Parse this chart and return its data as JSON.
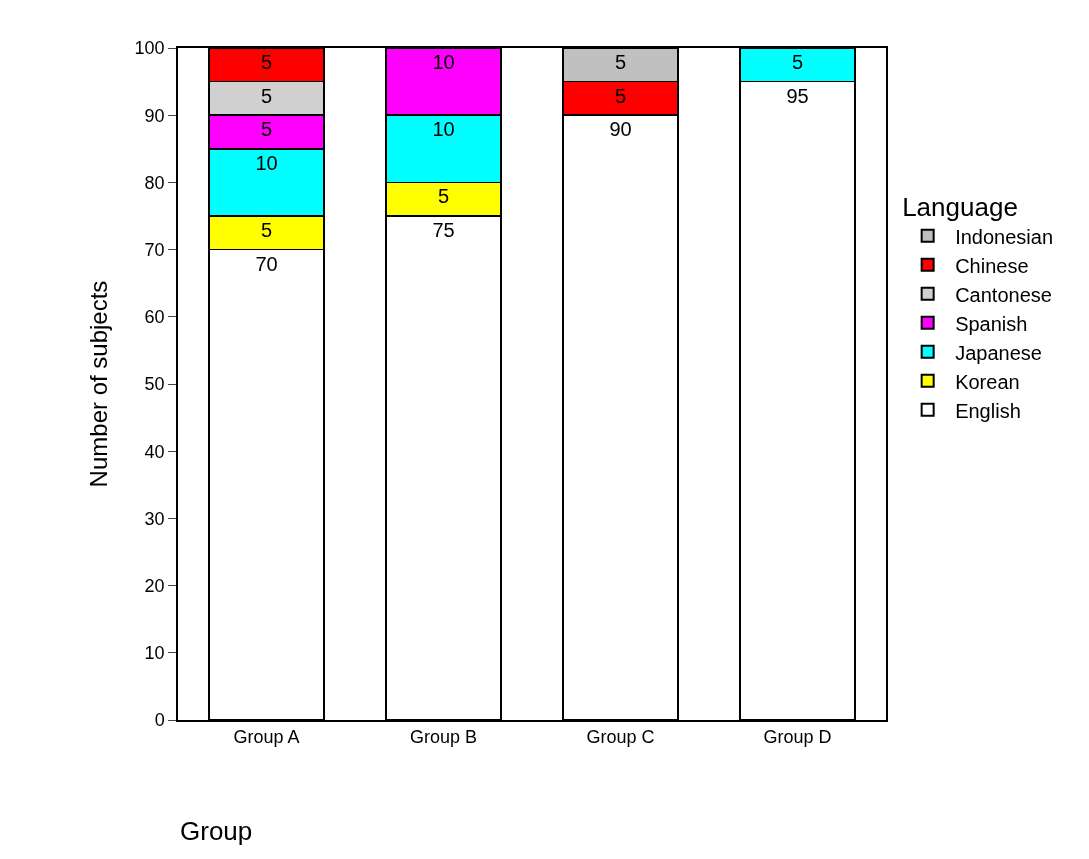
{
  "chart_data": {
    "type": "bar",
    "stacked": true,
    "xlabel": "Group",
    "ylabel": "Number of subjects",
    "legend_title": "Language",
    "legend": "right",
    "grid": false,
    "data_labels": true,
    "categories": [
      "Group A",
      "Group B",
      "Group C",
      "Group D"
    ],
    "ylim": [
      0,
      100
    ],
    "yticks": [
      0,
      10,
      20,
      30,
      40,
      50,
      60,
      70,
      80,
      90,
      100
    ],
    "series": [
      {
        "name": "English",
        "color": "#ffffff",
        "values": [
          70,
          75,
          90,
          95
        ]
      },
      {
        "name": "Korean",
        "color": "#ffff00",
        "values": [
          5,
          5,
          null,
          null
        ]
      },
      {
        "name": "Japanese",
        "color": "#00ffff",
        "values": [
          10,
          10,
          null,
          5
        ]
      },
      {
        "name": "Spanish",
        "color": "#ff00ff",
        "values": [
          5,
          10,
          null,
          null
        ]
      },
      {
        "name": "Cantonese",
        "color": "#d0d0d0",
        "values": [
          5,
          null,
          null,
          null
        ]
      },
      {
        "name": "Chinese",
        "color": "#ff0000",
        "values": [
          5,
          null,
          5,
          null
        ]
      },
      {
        "name": "Indonesian",
        "color": "#c0c0c0",
        "values": [
          null,
          null,
          5,
          null
        ]
      }
    ]
  }
}
